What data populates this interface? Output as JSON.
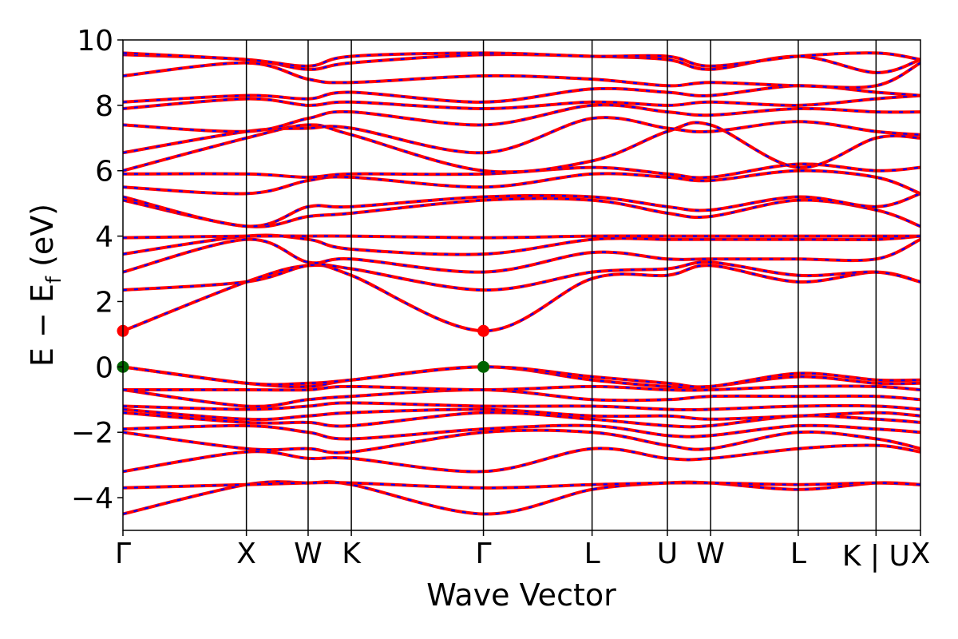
{
  "chart_data": {
    "type": "line",
    "title": "",
    "xlabel": "Wave Vector",
    "ylabel": "E − E_f (eV)",
    "ylabel_parts": {
      "main": "E − E",
      "sub": "f",
      "unit": " (eV)"
    },
    "ylim": [
      -5,
      10
    ],
    "yticks": [
      -4,
      -2,
      0,
      2,
      4,
      6,
      8,
      10
    ],
    "ytick_labels": [
      "−4",
      "−2",
      "0",
      "2",
      "4",
      "6",
      "8",
      "10"
    ],
    "xlim": [
      0,
      6.46
    ],
    "kpath": [
      {
        "label": "Γ",
        "k": 0.0
      },
      {
        "label": "X",
        "k": 1.0
      },
      {
        "label": "W",
        "k": 1.5
      },
      {
        "label": "K",
        "k": 1.85
      },
      {
        "label": "Γ",
        "k": 2.92
      },
      {
        "label": "L",
        "k": 3.8
      },
      {
        "label": "U",
        "k": 4.41
      },
      {
        "label": "W",
        "k": 4.76
      },
      {
        "label": "L",
        "k": 5.47
      },
      {
        "label": "K | U",
        "k": 6.1
      },
      {
        "label": "X",
        "k": 6.46
      }
    ],
    "band_colors": {
      "primary": "#ff0000",
      "dashed_overlay": "#0000ff"
    },
    "markers": [
      {
        "label": "VBM",
        "k": 0.0,
        "energy": 0.0,
        "color": "#006400"
      },
      {
        "label": "VBM",
        "k": 2.92,
        "energy": 0.0,
        "color": "#006400"
      },
      {
        "label": "CBM",
        "k": 0.0,
        "energy": 1.1,
        "color": "#ff0000"
      },
      {
        "label": "CBM",
        "k": 2.92,
        "energy": 1.1,
        "color": "#ff0000"
      }
    ],
    "series": [
      {
        "x": [
          0,
          1.0,
          1.5,
          1.85,
          2.92,
          3.8,
          4.41,
          4.76,
          5.47,
          6.1,
          6.46
        ],
        "values": [
          -4.5,
          -3.6,
          -3.55,
          -3.6,
          -4.5,
          -3.75,
          -3.55,
          -3.55,
          -3.75,
          -3.55,
          -3.6
        ]
      },
      {
        "x": [
          0,
          1.0,
          1.5,
          1.85,
          2.92,
          3.8,
          4.41,
          4.76,
          5.47,
          6.1,
          6.46
        ],
        "values": [
          -3.7,
          -3.6,
          -3.55,
          -3.55,
          -3.7,
          -3.6,
          -3.55,
          -3.55,
          -3.6,
          -3.55,
          -3.6
        ]
      },
      {
        "x": [
          0,
          1.0,
          1.5,
          1.85,
          2.92,
          3.8,
          4.41,
          4.76,
          5.47,
          6.1,
          6.46
        ],
        "values": [
          -3.2,
          -2.6,
          -2.8,
          -2.8,
          -3.2,
          -2.5,
          -2.8,
          -2.8,
          -2.5,
          -2.4,
          -2.6
        ]
      },
      {
        "x": [
          0,
          1.0,
          1.5,
          1.85,
          2.92,
          3.8,
          4.41,
          4.76,
          5.47,
          6.1,
          6.46
        ],
        "values": [
          -2.0,
          -2.5,
          -2.5,
          -2.6,
          -2.0,
          -2.0,
          -2.4,
          -2.5,
          -2.0,
          -2.2,
          -2.5
        ]
      },
      {
        "x": [
          0,
          1.0,
          1.5,
          1.85,
          2.92,
          3.8,
          4.41,
          4.76,
          5.47,
          6.1,
          6.46
        ],
        "values": [
          -1.9,
          -1.8,
          -2.0,
          -2.2,
          -1.9,
          -1.8,
          -2.1,
          -2.1,
          -1.8,
          -1.9,
          -2.0
        ]
      },
      {
        "x": [
          0,
          1.0,
          1.5,
          1.85,
          2.92,
          3.8,
          4.41,
          4.76,
          5.47,
          6.1,
          6.46
        ],
        "values": [
          -1.4,
          -1.7,
          -1.7,
          -1.8,
          -1.4,
          -1.6,
          -1.8,
          -1.8,
          -1.5,
          -1.6,
          -1.7
        ]
      },
      {
        "x": [
          0,
          1.0,
          1.5,
          1.85,
          2.92,
          3.8,
          4.41,
          4.76,
          5.47,
          6.1,
          6.46
        ],
        "values": [
          -1.3,
          -1.6,
          -1.5,
          -1.4,
          -1.3,
          -1.5,
          -1.5,
          -1.6,
          -1.5,
          -1.4,
          -1.5
        ]
      },
      {
        "x": [
          0,
          1.0,
          1.5,
          1.85,
          2.92,
          3.8,
          4.41,
          4.76,
          5.47,
          6.1,
          6.46
        ],
        "values": [
          -1.2,
          -1.3,
          -1.2,
          -1.1,
          -1.2,
          -1.2,
          -1.3,
          -1.3,
          -1.2,
          -1.2,
          -1.3
        ]
      },
      {
        "x": [
          0,
          1.0,
          1.5,
          1.85,
          2.92,
          3.8,
          4.41,
          4.76,
          5.47,
          6.1,
          6.46
        ],
        "values": [
          -0.7,
          -1.2,
          -1.0,
          -0.9,
          -0.7,
          -1.0,
          -1.0,
          -0.9,
          -0.9,
          -0.9,
          -1.0
        ]
      },
      {
        "x": [
          0,
          1.0,
          1.5,
          1.85,
          2.92,
          3.8,
          4.41,
          4.76,
          5.47,
          6.1,
          6.46
        ],
        "values": [
          -0.7,
          -0.7,
          -0.7,
          -0.6,
          -0.7,
          -0.6,
          -0.7,
          -0.7,
          -0.6,
          -0.6,
          -0.7
        ]
      },
      {
        "x": [
          0,
          1.0,
          1.5,
          1.85,
          2.92,
          3.8,
          4.41,
          4.76,
          5.47,
          6.1,
          6.46
        ],
        "values": [
          0.0,
          -0.5,
          -0.6,
          -0.4,
          0.0,
          -0.4,
          -0.6,
          -0.6,
          -0.3,
          -0.5,
          -0.5
        ]
      },
      {
        "x": [
          0,
          1.0,
          1.5,
          1.85,
          2.92,
          3.8,
          4.41,
          4.76,
          5.47,
          6.1,
          6.46
        ],
        "values": [
          0.0,
          -0.5,
          -0.5,
          -0.4,
          0.0,
          -0.3,
          -0.5,
          -0.6,
          -0.2,
          -0.4,
          -0.4
        ]
      },
      {
        "x": [
          0,
          1.0,
          1.5,
          1.85,
          2.92,
          3.8,
          4.41,
          4.76,
          5.47,
          6.1,
          6.46
        ],
        "values": [
          1.1,
          2.6,
          3.1,
          2.8,
          1.1,
          2.7,
          2.8,
          3.1,
          2.6,
          2.9,
          2.6
        ]
      },
      {
        "x": [
          0,
          1.0,
          1.5,
          1.85,
          2.92,
          3.8,
          4.41,
          4.76,
          5.47,
          6.1,
          6.46
        ],
        "values": [
          2.35,
          2.6,
          3.1,
          3.0,
          2.35,
          2.9,
          3.0,
          3.2,
          2.8,
          2.9,
          2.6
        ]
      },
      {
        "x": [
          0,
          1.0,
          1.5,
          1.85,
          2.92,
          3.8,
          4.41,
          4.76,
          5.47,
          6.1,
          6.46
        ],
        "values": [
          2.9,
          3.9,
          3.2,
          3.3,
          2.9,
          3.5,
          3.3,
          3.3,
          3.3,
          3.3,
          3.9
        ]
      },
      {
        "x": [
          0,
          1.0,
          1.5,
          1.85,
          2.92,
          3.8,
          4.41,
          4.76,
          5.47,
          6.1,
          6.46
        ],
        "values": [
          3.45,
          4.0,
          3.9,
          3.6,
          3.45,
          3.9,
          3.9,
          3.9,
          3.9,
          3.9,
          4.0
        ]
      },
      {
        "x": [
          0,
          1.0,
          1.5,
          1.85,
          2.92,
          3.8,
          4.41,
          4.76,
          5.47,
          6.1,
          6.46
        ],
        "values": [
          3.95,
          4.0,
          4.0,
          4.0,
          3.95,
          4.0,
          4.0,
          4.0,
          4.0,
          4.0,
          4.0
        ]
      },
      {
        "x": [
          0,
          1.0,
          1.5,
          1.85,
          2.92,
          3.8,
          4.41,
          4.76,
          5.47,
          6.1,
          6.46
        ],
        "values": [
          5.1,
          4.3,
          4.6,
          4.7,
          5.1,
          5.1,
          4.7,
          4.6,
          5.1,
          4.8,
          4.3
        ]
      },
      {
        "x": [
          0,
          1.0,
          1.5,
          1.85,
          2.92,
          3.8,
          4.41,
          4.76,
          5.47,
          6.1,
          6.46
        ],
        "values": [
          5.2,
          4.3,
          4.9,
          4.9,
          5.2,
          5.2,
          4.9,
          4.8,
          5.2,
          4.9,
          5.3
        ]
      },
      {
        "x": [
          0,
          1.0,
          1.5,
          1.85,
          2.92,
          3.8,
          4.41,
          4.76,
          5.47,
          6.1,
          6.46
        ],
        "values": [
          5.5,
          5.3,
          5.7,
          5.8,
          5.5,
          5.9,
          5.8,
          5.7,
          6.0,
          5.8,
          5.3
        ]
      },
      {
        "x": [
          0,
          1.0,
          1.5,
          1.85,
          2.92,
          3.8,
          4.41,
          4.76,
          5.47,
          6.1,
          6.46
        ],
        "values": [
          5.9,
          5.9,
          5.8,
          5.9,
          5.9,
          6.1,
          5.9,
          5.8,
          6.2,
          6.0,
          6.1
        ]
      },
      {
        "x": [
          0,
          1.0,
          1.5,
          1.85,
          2.92,
          3.8,
          4.41,
          4.76,
          5.47,
          6.1,
          6.46
        ],
        "values": [
          6.0,
          7.0,
          7.4,
          7.1,
          6.0,
          6.3,
          7.2,
          7.4,
          6.1,
          7.0,
          7.0
        ]
      },
      {
        "x": [
          0,
          1.0,
          1.5,
          1.85,
          2.92,
          3.8,
          4.41,
          4.76,
          5.47,
          6.1,
          6.46
        ],
        "values": [
          6.55,
          7.2,
          7.3,
          7.3,
          6.55,
          7.6,
          7.3,
          7.2,
          7.5,
          7.2,
          7.1
        ]
      },
      {
        "x": [
          0,
          1.0,
          1.5,
          1.85,
          2.92,
          3.8,
          4.41,
          4.76,
          5.47,
          6.1,
          6.46
        ],
        "values": [
          7.4,
          7.2,
          7.6,
          7.8,
          7.4,
          8.0,
          7.8,
          7.7,
          7.9,
          7.8,
          7.8
        ]
      },
      {
        "x": [
          0,
          1.0,
          1.5,
          1.85,
          2.92,
          3.8,
          4.41,
          4.76,
          5.47,
          6.1,
          6.46
        ],
        "values": [
          7.9,
          8.2,
          8.0,
          8.1,
          7.9,
          8.1,
          8.0,
          8.1,
          8.0,
          8.2,
          8.3
        ]
      },
      {
        "x": [
          0,
          1.0,
          1.5,
          1.85,
          2.92,
          3.8,
          4.41,
          4.76,
          5.47,
          6.1,
          6.46
        ],
        "values": [
          8.1,
          8.3,
          8.2,
          8.4,
          8.1,
          8.5,
          8.4,
          8.3,
          8.6,
          8.4,
          8.3
        ]
      },
      {
        "x": [
          0,
          1.0,
          1.5,
          1.85,
          2.92,
          3.8,
          4.41,
          4.76,
          5.47,
          6.1,
          6.46
        ],
        "values": [
          8.9,
          9.3,
          8.8,
          8.7,
          8.9,
          8.8,
          8.6,
          8.7,
          8.6,
          8.6,
          9.3
        ]
      },
      {
        "x": [
          0,
          1.0,
          1.5,
          1.85,
          2.92,
          3.8,
          4.41,
          4.76,
          5.47,
          6.1,
          6.46
        ],
        "values": [
          9.55,
          9.4,
          9.1,
          9.3,
          9.55,
          9.5,
          9.4,
          9.1,
          9.5,
          9.0,
          9.4
        ]
      },
      {
        "x": [
          0,
          1.0,
          1.5,
          1.85,
          2.92,
          3.8,
          4.41,
          4.76,
          5.47,
          6.1,
          6.46
        ],
        "values": [
          9.6,
          9.4,
          9.2,
          9.5,
          9.6,
          9.5,
          9.5,
          9.2,
          9.5,
          9.6,
          9.4
        ]
      }
    ]
  }
}
